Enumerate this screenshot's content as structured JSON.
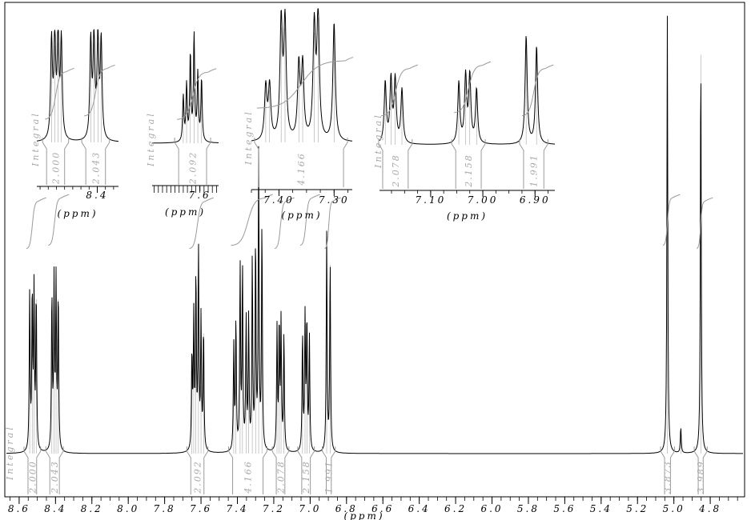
{
  "chart_data": [
    {
      "panel": "main",
      "type": "line",
      "xlabel": "(ppm)",
      "x_reversed": true,
      "xlim": [
        8.67,
        4.62
      ],
      "ylim": [
        0,
        1
      ],
      "x_ticks": [
        "8.6",
        "8.4",
        "8.2",
        "8.0",
        "7.8",
        "7.6",
        "7.4",
        "7.2",
        "7.0",
        "6.8",
        "6.6",
        "6.4",
        "6.2",
        "6.0",
        "5.8",
        "5.6",
        "5.4",
        "5.2",
        "5.0",
        "4.8"
      ],
      "tick_values": [
        8.6,
        8.4,
        8.2,
        8.0,
        7.8,
        7.6,
        7.4,
        7.2,
        7.0,
        6.8,
        6.6,
        6.4,
        6.2,
        6.0,
        5.8,
        5.6,
        5.4,
        5.2,
        5.0,
        4.8
      ],
      "integral_caption": "Integral",
      "peaks": [
        {
          "ppm": 8.542,
          "height": 0.36
        },
        {
          "ppm": 8.528,
          "height": 0.36
        },
        {
          "ppm": 8.518,
          "height": 0.36
        },
        {
          "ppm": 8.506,
          "height": 0.36
        },
        {
          "ppm": 8.42,
          "height": 0.36
        },
        {
          "ppm": 8.408,
          "height": 0.38
        },
        {
          "ppm": 8.397,
          "height": 0.38
        },
        {
          "ppm": 8.385,
          "height": 0.36
        },
        {
          "ppm": 7.65,
          "height": 0.22
        },
        {
          "ppm": 7.64,
          "height": 0.3
        },
        {
          "ppm": 7.628,
          "height": 0.4
        },
        {
          "ppm": 7.614,
          "height": 0.46
        },
        {
          "ppm": 7.6,
          "height": 0.3
        },
        {
          "ppm": 7.586,
          "height": 0.28
        },
        {
          "ppm": 7.42,
          "height": 0.24
        },
        {
          "ppm": 7.408,
          "height": 0.3
        },
        {
          "ppm": 7.385,
          "height": 0.42
        },
        {
          "ppm": 7.372,
          "height": 0.42
        },
        {
          "ppm": 7.352,
          "height": 0.3
        },
        {
          "ppm": 7.338,
          "height": 0.3
        },
        {
          "ppm": 7.318,
          "height": 0.44
        },
        {
          "ppm": 7.3,
          "height": 0.48
        },
        {
          "ppm": 7.283,
          "height": 0.68
        },
        {
          "ppm": 7.265,
          "height": 0.52
        },
        {
          "ppm": 7.182,
          "height": 0.28
        },
        {
          "ppm": 7.17,
          "height": 0.29
        },
        {
          "ppm": 7.16,
          "height": 0.29
        },
        {
          "ppm": 7.144,
          "height": 0.27
        },
        {
          "ppm": 7.042,
          "height": 0.27
        },
        {
          "ppm": 7.028,
          "height": 0.3
        },
        {
          "ppm": 7.018,
          "height": 0.3
        },
        {
          "ppm": 7.004,
          "height": 0.26
        },
        {
          "ppm": 6.909,
          "height": 0.5
        },
        {
          "ppm": 6.89,
          "height": 0.44
        },
        {
          "ppm": 5.036,
          "height": 1.0
        },
        {
          "ppm": 4.962,
          "height": 0.06
        },
        {
          "ppm": 4.852,
          "height": 0.93
        }
      ],
      "integrals": [
        {
          "label": "2.000",
          "ppm_range": [
            8.56,
            8.495
          ]
        },
        {
          "label": "2.043",
          "ppm_range": [
            8.44,
            8.37
          ]
        },
        {
          "label": "2.092",
          "ppm_range": [
            7.665,
            7.575
          ]
        },
        {
          "label": "4.166",
          "ppm_range": [
            7.435,
            7.25
          ]
        },
        {
          "label": "2.078",
          "ppm_range": [
            7.195,
            7.13
          ]
        },
        {
          "label": "2.158",
          "ppm_range": [
            7.055,
            6.99
          ]
        },
        {
          "label": "1.991",
          "ppm_range": [
            6.92,
            6.875
          ]
        },
        {
          "label": "3.873",
          "ppm_range": [
            5.06,
            5.01
          ]
        },
        {
          "label": "3.989",
          "ppm_range": [
            4.875,
            4.83
          ]
        }
      ]
    },
    {
      "panel": "inset-1",
      "type": "line",
      "xlabel": "(ppm)",
      "x_ticks": [
        "8.4"
      ],
      "tick_values": [
        8.4
      ],
      "xlim": [
        8.585,
        8.335
      ],
      "integral_caption": "Integral",
      "peaks": [
        {
          "ppm": 8.54,
          "height": 0.92
        },
        {
          "ppm": 8.53,
          "height": 0.92
        },
        {
          "ppm": 8.52,
          "height": 0.95
        },
        {
          "ppm": 8.51,
          "height": 0.92
        },
        {
          "ppm": 8.42,
          "height": 0.92
        },
        {
          "ppm": 8.41,
          "height": 0.95
        },
        {
          "ppm": 8.398,
          "height": 0.95
        },
        {
          "ppm": 8.388,
          "height": 0.92
        }
      ],
      "integrals": [
        {
          "label": "2.000",
          "ppm_range": [
            8.56,
            8.495
          ]
        },
        {
          "label": "2.043",
          "ppm_range": [
            8.44,
            8.37
          ]
        }
      ]
    },
    {
      "panel": "inset-2",
      "type": "line",
      "xlabel": "(ppm)",
      "x_ticks": [
        "7.6"
      ],
      "tick_values": [
        7.6
      ],
      "xlim": [
        7.715,
        7.555
      ],
      "integral_caption": "Integral",
      "peaks": [
        {
          "ppm": 7.64,
          "height": 0.42
        },
        {
          "ppm": 7.632,
          "height": 0.52
        },
        {
          "ppm": 7.623,
          "height": 0.8
        },
        {
          "ppm": 7.614,
          "height": 0.98
        },
        {
          "ppm": 7.605,
          "height": 0.62
        },
        {
          "ppm": 7.596,
          "height": 0.58
        }
      ],
      "integrals": [
        {
          "label": "2.092",
          "ppm_range": [
            7.655,
            7.58
          ]
        }
      ]
    },
    {
      "panel": "inset-3",
      "type": "line",
      "xlabel": "(ppm)",
      "x_ticks": [
        "7.40",
        "7.30"
      ],
      "tick_values": [
        7.4,
        7.3
      ],
      "xlim": [
        7.45,
        7.267
      ],
      "integral_caption": "Integral",
      "peaks": [
        {
          "ppm": 7.424,
          "height": 0.42
        },
        {
          "ppm": 7.417,
          "height": 0.42
        },
        {
          "ppm": 7.396,
          "height": 0.92
        },
        {
          "ppm": 7.389,
          "height": 0.92
        },
        {
          "ppm": 7.364,
          "height": 0.58
        },
        {
          "ppm": 7.357,
          "height": 0.58
        },
        {
          "ppm": 7.336,
          "height": 0.88
        },
        {
          "ppm": 7.329,
          "height": 1.0
        },
        {
          "ppm": 7.3,
          "height": 0.93
        }
      ],
      "integrals": [
        {
          "label": "4.166",
          "ppm_range": [
            7.44,
            7.28
          ]
        }
      ]
    },
    {
      "panel": "inset-4",
      "type": "line",
      "xlabel": "(ppm)",
      "x_ticks": [
        "7.10",
        "7.00",
        "6.90"
      ],
      "tick_values": [
        7.1,
        7.0,
        6.9
      ],
      "xlim": [
        7.198,
        6.862
      ],
      "integral_caption": "Integral",
      "peaks": [
        {
          "ppm": 7.187,
          "height": 0.52
        },
        {
          "ppm": 7.176,
          "height": 0.54
        },
        {
          "ppm": 7.168,
          "height": 0.54
        },
        {
          "ppm": 7.155,
          "height": 0.46
        },
        {
          "ppm": 7.046,
          "height": 0.52
        },
        {
          "ppm": 7.033,
          "height": 0.57
        },
        {
          "ppm": 7.025,
          "height": 0.57
        },
        {
          "ppm": 7.012,
          "height": 0.46
        },
        {
          "ppm": 6.917,
          "height": 0.92
        },
        {
          "ppm": 6.897,
          "height": 0.83
        }
      ],
      "integrals": [
        {
          "label": "2.078",
          "ppm_range": [
            7.195,
            7.14
          ]
        },
        {
          "label": "2.158",
          "ppm_range": [
            7.055,
            7.0
          ]
        },
        {
          "label": "1.991",
          "ppm_range": [
            6.925,
            6.88
          ]
        }
      ]
    }
  ]
}
